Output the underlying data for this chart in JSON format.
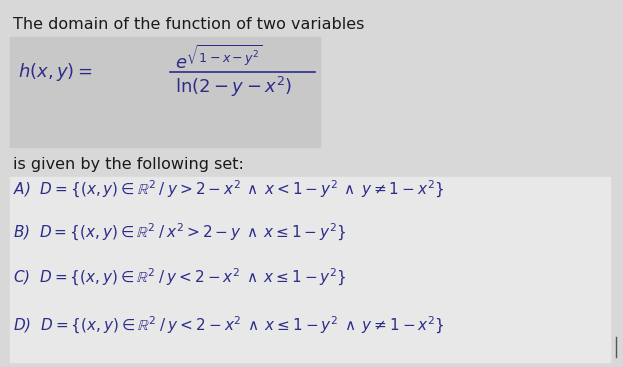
{
  "bg_color": "#e8e8e8",
  "outer_bg": "#dcdcdc",
  "title": "The domain of the function of two variables",
  "intro": "is given by the following set:",
  "options": [
    "A)  $D = \\{(x, y) \\in \\mathbb{R}^2 \\: / \\: y > 2 - x^2 \\: \\wedge \\: x < 1 - y^2 \\: \\wedge \\: y \\neq 1 - x^2\\}$",
    "B)  $D = \\{(x, y) \\in \\mathbb{R}^2 \\: / \\: x^2 > 2 - y \\: \\wedge \\: x \\leq 1 - y^2\\}$",
    "C)  $D = \\{(x, y) \\in \\mathbb{R}^2 \\: / \\: y < 2 - x^2 \\: \\wedge \\: x \\leq 1 - y^2\\}$",
    "D)  $D = \\{(x, y) \\in \\mathbb{R}^2 \\: / \\: y < 2 - x^2 \\: \\wedge \\: x \\leq 1 - y^2 \\: \\wedge \\: y \\neq 1 - x^2\\}$"
  ],
  "text_color": "#1a1a1a",
  "math_color": "#2c2c8a",
  "fontsize_title": 11.5,
  "fontsize_options": 11,
  "fontsize_function": 13
}
